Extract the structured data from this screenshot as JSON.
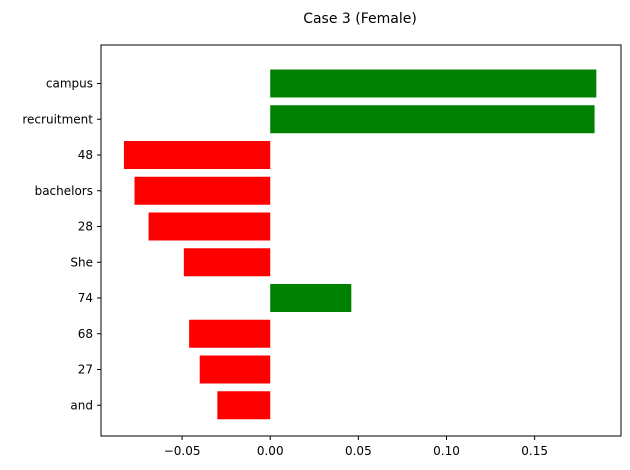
{
  "chart_data": {
    "type": "bar",
    "orientation": "horizontal",
    "title": "Case 3 (Female)",
    "xlabel": "",
    "ylabel": "",
    "categories": [
      "campus",
      "recruitment",
      "48",
      "bachelors",
      "28",
      "She",
      "74",
      "68",
      "27",
      "and"
    ],
    "values": [
      0.185,
      0.184,
      -0.083,
      -0.077,
      -0.069,
      -0.049,
      0.046,
      -0.046,
      -0.04,
      -0.03
    ],
    "xlim": [
      -0.096,
      0.199
    ],
    "xticks": [
      -0.05,
      0.0,
      0.05,
      0.1,
      0.15
    ],
    "xtick_labels": [
      "−0.05",
      "0.00",
      "0.05",
      "0.10",
      "0.15"
    ],
    "grid": false,
    "colors": {
      "positive": "#008000",
      "negative": "#ff0000"
    }
  }
}
